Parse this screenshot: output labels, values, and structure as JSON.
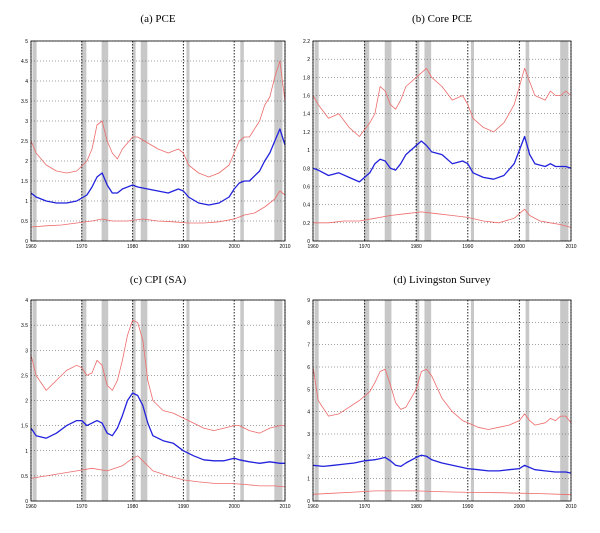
{
  "chart_data": [
    {
      "type": "line",
      "title": "(a) PCE",
      "xlim": [
        1960,
        2010
      ],
      "ylim": [
        0,
        5
      ],
      "x_ticks": [
        "1960",
        "1970",
        "1980",
        "1990",
        "2000",
        "2010"
      ],
      "y_ticks": [
        "0",
        "0.5",
        "1",
        "1.5",
        "2",
        "2.5",
        "3",
        "3.5",
        "4",
        "4.5",
        "5"
      ],
      "recessions": [
        [
          1960.3,
          1961.1
        ],
        [
          1969.9,
          1970.9
        ],
        [
          1973.9,
          1975.2
        ],
        [
          1980.0,
          1980.6
        ],
        [
          1981.6,
          1982.9
        ],
        [
          1990.6,
          1991.2
        ],
        [
          2001.2,
          2001.9
        ],
        [
          2007.9,
          2009.5
        ]
      ],
      "series": [
        {
          "color": "#ee6b6b",
          "x": [
            1960,
            1961,
            1963,
            1965,
            1967,
            1969,
            1971,
            1972,
            1973,
            1974,
            1975,
            1976,
            1977,
            1978,
            1980,
            1981,
            1983,
            1985,
            1987,
            1989,
            1990,
            1991,
            1993,
            1995,
            1997,
            1999,
            2000,
            2001,
            2002,
            2003,
            2005,
            2006,
            2007,
            2008,
            2009,
            2010
          ],
          "y": [
            2.5,
            2.2,
            1.9,
            1.75,
            1.7,
            1.75,
            2.0,
            2.3,
            2.9,
            3.0,
            2.5,
            2.2,
            2.05,
            2.3,
            2.6,
            2.6,
            2.45,
            2.3,
            2.2,
            2.3,
            2.2,
            1.9,
            1.7,
            1.6,
            1.7,
            1.9,
            2.2,
            2.5,
            2.6,
            2.6,
            3.0,
            3.4,
            3.6,
            4.1,
            4.5,
            3.5
          ]
        },
        {
          "color": "#2222dd",
          "x": [
            1960,
            1961,
            1963,
            1965,
            1967,
            1969,
            1971,
            1972,
            1973,
            1974,
            1975,
            1976,
            1977,
            1978,
            1980,
            1981,
            1983,
            1985,
            1987,
            1989,
            1990,
            1991,
            1993,
            1995,
            1997,
            1999,
            2000,
            2001,
            2002,
            2003,
            2005,
            2006,
            2007,
            2008,
            2009,
            2010
          ],
          "y": [
            1.2,
            1.1,
            1.0,
            0.95,
            0.95,
            1.0,
            1.15,
            1.35,
            1.6,
            1.7,
            1.4,
            1.2,
            1.2,
            1.3,
            1.4,
            1.35,
            1.3,
            1.25,
            1.2,
            1.3,
            1.25,
            1.1,
            0.95,
            0.9,
            0.95,
            1.1,
            1.3,
            1.45,
            1.5,
            1.5,
            1.75,
            2.0,
            2.2,
            2.5,
            2.8,
            2.4
          ]
        },
        {
          "color": "#ee6b6b",
          "x": [
            1960,
            1963,
            1966,
            1969,
            1972,
            1974,
            1976,
            1979,
            1982,
            1985,
            1988,
            1991,
            1994,
            1997,
            2000,
            2002,
            2004,
            2006,
            2008,
            2009,
            2010
          ],
          "y": [
            0.35,
            0.38,
            0.4,
            0.45,
            0.5,
            0.55,
            0.5,
            0.5,
            0.55,
            0.5,
            0.48,
            0.45,
            0.45,
            0.48,
            0.55,
            0.65,
            0.7,
            0.85,
            1.05,
            1.25,
            1.15
          ]
        }
      ]
    },
    {
      "type": "line",
      "title": "(b) Core PCE",
      "xlim": [
        1960,
        2010
      ],
      "ylim": [
        0,
        2.2
      ],
      "x_ticks": [
        "1960",
        "1970",
        "1980",
        "1990",
        "2000",
        "2010"
      ],
      "y_ticks": [
        "0",
        "0.2",
        "0.4",
        "0.6",
        "0.8",
        "1",
        "1.2",
        "1.4",
        "1.6",
        "1.8",
        "2",
        "2.2"
      ],
      "recessions": [
        [
          1960.3,
          1961.1
        ],
        [
          1969.9,
          1970.9
        ],
        [
          1973.9,
          1975.2
        ],
        [
          1980.0,
          1980.6
        ],
        [
          1981.6,
          1982.9
        ],
        [
          1990.6,
          1991.2
        ],
        [
          2001.2,
          2001.9
        ],
        [
          2007.9,
          2009.5
        ]
      ],
      "series": [
        {
          "color": "#ee6b6b",
          "x": [
            1960,
            1961,
            1963,
            1965,
            1967,
            1969,
            1971,
            1972,
            1973,
            1974,
            1975,
            1976,
            1977,
            1978,
            1980,
            1981,
            1982,
            1983,
            1985,
            1987,
            1989,
            1990,
            1991,
            1993,
            1995,
            1997,
            1999,
            2000,
            2001,
            2002,
            2003,
            2005,
            2006,
            2007,
            2008,
            2009,
            2010
          ],
          "y": [
            1.6,
            1.5,
            1.35,
            1.4,
            1.25,
            1.15,
            1.3,
            1.4,
            1.7,
            1.65,
            1.5,
            1.45,
            1.55,
            1.7,
            1.8,
            1.85,
            1.9,
            1.8,
            1.7,
            1.55,
            1.6,
            1.5,
            1.35,
            1.25,
            1.2,
            1.3,
            1.5,
            1.7,
            1.9,
            1.75,
            1.6,
            1.55,
            1.65,
            1.6,
            1.6,
            1.65,
            1.6
          ]
        },
        {
          "color": "#2222dd",
          "x": [
            1960,
            1961,
            1963,
            1965,
            1967,
            1969,
            1971,
            1972,
            1973,
            1974,
            1975,
            1976,
            1977,
            1978,
            1980,
            1981,
            1982,
            1983,
            1985,
            1987,
            1989,
            1990,
            1991,
            1993,
            1995,
            1997,
            1999,
            2000,
            2001,
            2002,
            2003,
            2005,
            2006,
            2007,
            2008,
            2009,
            2010
          ],
          "y": [
            0.8,
            0.78,
            0.72,
            0.75,
            0.7,
            0.65,
            0.75,
            0.85,
            0.9,
            0.88,
            0.8,
            0.78,
            0.85,
            0.95,
            1.05,
            1.1,
            1.05,
            0.98,
            0.95,
            0.85,
            0.88,
            0.85,
            0.75,
            0.7,
            0.68,
            0.72,
            0.85,
            1.0,
            1.15,
            0.95,
            0.85,
            0.82,
            0.85,
            0.82,
            0.82,
            0.82,
            0.8
          ]
        },
        {
          "color": "#ee6b6b",
          "x": [
            1960,
            1963,
            1966,
            1969,
            1972,
            1975,
            1978,
            1981,
            1984,
            1987,
            1990,
            1993,
            1996,
            1999,
            2000,
            2001,
            2002,
            2004,
            2006,
            2008,
            2010
          ],
          "y": [
            0.2,
            0.2,
            0.22,
            0.22,
            0.25,
            0.28,
            0.3,
            0.32,
            0.3,
            0.28,
            0.26,
            0.22,
            0.2,
            0.25,
            0.3,
            0.35,
            0.28,
            0.22,
            0.2,
            0.18,
            0.15
          ]
        }
      ]
    },
    {
      "type": "line",
      "title": "(c) CPI (SA)",
      "xlim": [
        1960,
        2010
      ],
      "ylim": [
        0,
        4
      ],
      "x_ticks": [
        "1960",
        "1970",
        "1980",
        "1990",
        "2000",
        "2010"
      ],
      "y_ticks": [
        "0",
        "0.5",
        "1",
        "1.5",
        "2",
        "2.5",
        "3",
        "3.5",
        "4"
      ],
      "recessions": [
        [
          1960.3,
          1961.1
        ],
        [
          1969.9,
          1970.9
        ],
        [
          1973.9,
          1975.2
        ],
        [
          1980.0,
          1980.6
        ],
        [
          1981.6,
          1982.9
        ],
        [
          1990.6,
          1991.2
        ],
        [
          2001.2,
          2001.9
        ],
        [
          2007.9,
          2009.5
        ]
      ],
      "series": [
        {
          "color": "#ee6b6b",
          "x": [
            1960,
            1961,
            1963,
            1965,
            1967,
            1969,
            1970,
            1971,
            1972,
            1973,
            1974,
            1975,
            1976,
            1977,
            1978,
            1979,
            1980,
            1981,
            1982,
            1983,
            1984,
            1986,
            1988,
            1990,
            1992,
            1994,
            1996,
            1998,
            2000,
            2001,
            2003,
            2005,
            2007,
            2009,
            2010
          ],
          "y": [
            2.9,
            2.5,
            2.2,
            2.4,
            2.6,
            2.7,
            2.65,
            2.5,
            2.55,
            2.8,
            2.7,
            2.3,
            2.2,
            2.4,
            2.8,
            3.3,
            3.6,
            3.55,
            3.2,
            2.4,
            2.0,
            1.8,
            1.75,
            1.65,
            1.55,
            1.45,
            1.4,
            1.45,
            1.5,
            1.5,
            1.4,
            1.35,
            1.45,
            1.5,
            1.5
          ]
        },
        {
          "color": "#2222dd",
          "x": [
            1960,
            1961,
            1963,
            1965,
            1967,
            1969,
            1970,
            1971,
            1972,
            1973,
            1974,
            1975,
            1976,
            1977,
            1978,
            1979,
            1980,
            1981,
            1982,
            1983,
            1984,
            1986,
            1988,
            1990,
            1992,
            1994,
            1996,
            1998,
            2000,
            2001,
            2003,
            2005,
            2007,
            2009,
            2010
          ],
          "y": [
            1.45,
            1.3,
            1.25,
            1.35,
            1.5,
            1.6,
            1.6,
            1.5,
            1.55,
            1.6,
            1.55,
            1.35,
            1.3,
            1.45,
            1.7,
            2.0,
            2.15,
            2.1,
            1.9,
            1.55,
            1.3,
            1.2,
            1.15,
            1.0,
            0.9,
            0.82,
            0.8,
            0.8,
            0.85,
            0.82,
            0.78,
            0.75,
            0.78,
            0.75,
            0.75
          ]
        },
        {
          "color": "#ee6b6b",
          "x": [
            1960,
            1963,
            1966,
            1969,
            1972,
            1975,
            1978,
            1980,
            1981,
            1982,
            1984,
            1987,
            1990,
            1993,
            1996,
            1999,
            2002,
            2005,
            2008,
            2010
          ],
          "y": [
            0.45,
            0.5,
            0.55,
            0.6,
            0.65,
            0.6,
            0.7,
            0.85,
            0.9,
            0.8,
            0.6,
            0.5,
            0.42,
            0.38,
            0.35,
            0.35,
            0.33,
            0.3,
            0.3,
            0.28
          ]
        }
      ]
    },
    {
      "type": "line",
      "title": "(d) Livingston Survey",
      "xlim": [
        1960,
        2010
      ],
      "ylim": [
        0,
        9
      ],
      "x_ticks": [
        "1960",
        "1970",
        "1980",
        "1990",
        "2000",
        "2010"
      ],
      "y_ticks": [
        "0",
        "1",
        "2",
        "3",
        "4",
        "5",
        "6",
        "7",
        "8",
        "9"
      ],
      "recessions": [
        [
          1960.3,
          1961.1
        ],
        [
          1969.9,
          1970.9
        ],
        [
          1973.9,
          1975.2
        ],
        [
          1980.0,
          1980.6
        ],
        [
          1981.6,
          1982.9
        ],
        [
          1990.6,
          1991.2
        ],
        [
          2001.2,
          2001.9
        ],
        [
          2007.9,
          2009.5
        ]
      ],
      "series": [
        {
          "color": "#ee6b6b",
          "x": [
            1960,
            1961,
            1963,
            1965,
            1967,
            1969,
            1971,
            1972,
            1973,
            1974,
            1975,
            1976,
            1977,
            1978,
            1980,
            1981,
            1982,
            1983,
            1985,
            1987,
            1989,
            1990,
            1992,
            1994,
            1996,
            1998,
            2000,
            2001,
            2002,
            2003,
            2005,
            2006,
            2007,
            2008,
            2009,
            2010
          ],
          "y": [
            6.0,
            4.5,
            3.8,
            3.9,
            4.2,
            4.5,
            4.9,
            5.3,
            5.8,
            5.9,
            5.2,
            4.4,
            4.1,
            4.2,
            5.0,
            5.8,
            5.9,
            5.6,
            4.6,
            4.0,
            3.6,
            3.5,
            3.3,
            3.2,
            3.3,
            3.4,
            3.6,
            3.9,
            3.6,
            3.4,
            3.5,
            3.7,
            3.6,
            3.8,
            3.8,
            3.5
          ]
        },
        {
          "color": "#2222dd",
          "x": [
            1960,
            1962,
            1964,
            1966,
            1968,
            1970,
            1972,
            1973,
            1974,
            1975,
            1976,
            1977,
            1978,
            1980,
            1981,
            1982,
            1983,
            1985,
            1987,
            1989,
            1990,
            1992,
            1994,
            1996,
            1998,
            2000,
            2001,
            2002,
            2003,
            2005,
            2007,
            2009,
            2010
          ],
          "y": [
            1.6,
            1.55,
            1.6,
            1.65,
            1.7,
            1.8,
            1.85,
            1.9,
            1.95,
            1.8,
            1.6,
            1.55,
            1.7,
            1.95,
            2.05,
            2.0,
            1.85,
            1.7,
            1.6,
            1.5,
            1.45,
            1.4,
            1.35,
            1.35,
            1.4,
            1.45,
            1.6,
            1.5,
            1.4,
            1.35,
            1.3,
            1.3,
            1.25
          ]
        },
        {
          "color": "#ee6b6b",
          "x": [
            1960,
            1964,
            1968,
            1972,
            1976,
            1980,
            1984,
            1988,
            1992,
            1996,
            2000,
            2004,
            2008,
            2010
          ],
          "y": [
            0.3,
            0.35,
            0.4,
            0.45,
            0.45,
            0.45,
            0.42,
            0.4,
            0.38,
            0.37,
            0.35,
            0.33,
            0.3,
            0.28
          ]
        }
      ]
    }
  ]
}
